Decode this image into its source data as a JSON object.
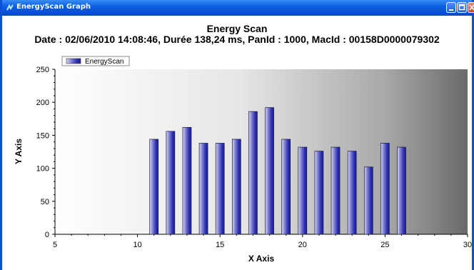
{
  "window": {
    "title": "EnergyScan Graph",
    "icon": "app-icon",
    "controls": [
      "minimize-icon",
      "maximize-icon",
      "close-icon"
    ],
    "accent": "#0a52d0"
  },
  "chart_data": {
    "type": "bar",
    "title": "Energy Scan",
    "subtitle": "Date : 02/06/2010 14:08:46, Durée 138,24 ms, PanId : 1000, MacId : 00158D0000079302",
    "xlabel": "X Axis",
    "ylabel": "Y Axis",
    "xlim": [
      5,
      30
    ],
    "ylim": [
      0,
      250
    ],
    "xticks": [
      5,
      10,
      15,
      20,
      25,
      30
    ],
    "yticks": [
      0,
      50,
      100,
      150,
      200,
      250
    ],
    "legend": {
      "placement": "top-left"
    },
    "grid": false,
    "bar_color": "#2b2fb0",
    "series": [
      {
        "name": "EnergyScan",
        "x": [
          11,
          12,
          13,
          14,
          15,
          16,
          17,
          18,
          19,
          20,
          21,
          22,
          23,
          24,
          25,
          26
        ],
        "values": [
          144,
          156,
          162,
          138,
          138,
          144,
          186,
          192,
          144,
          132,
          126,
          132,
          126,
          102,
          138,
          132
        ]
      }
    ]
  }
}
